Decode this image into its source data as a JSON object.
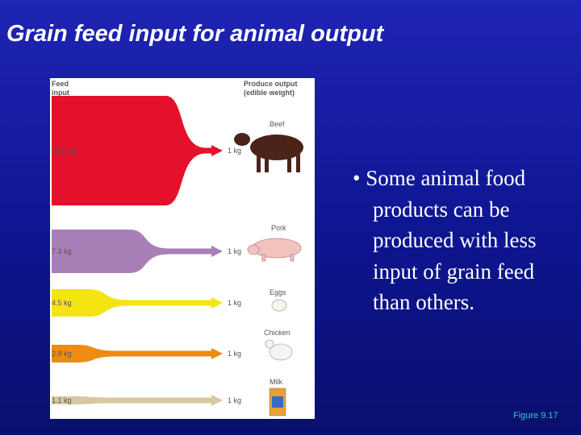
{
  "title": "Grain feed input for animal output",
  "figure": {
    "input_header": "Feed input",
    "output_header": "Produce output (edible weight)",
    "rows": [
      {
        "product": "Beef",
        "input": "20.0 kg",
        "output": "1 kg",
        "color": "#e3112b"
      },
      {
        "product": "Pork",
        "input": "7.3 kg",
        "output": "1 kg",
        "color": "#a87fb7"
      },
      {
        "product": "Eggs",
        "input": "4.5 kg",
        "output": "1 kg",
        "color": "#f4e512"
      },
      {
        "product": "Chicken",
        "input": "2.8 kg",
        "output": "1 kg",
        "color": "#ef8a12"
      },
      {
        "product": "Milk",
        "input": "1.1 kg",
        "output": "1 kg",
        "color": "#d8c8a0"
      }
    ]
  },
  "bullet": "Some animal food products can be produced with less input of grain feed than others.",
  "caption": "Figure 9.17"
}
